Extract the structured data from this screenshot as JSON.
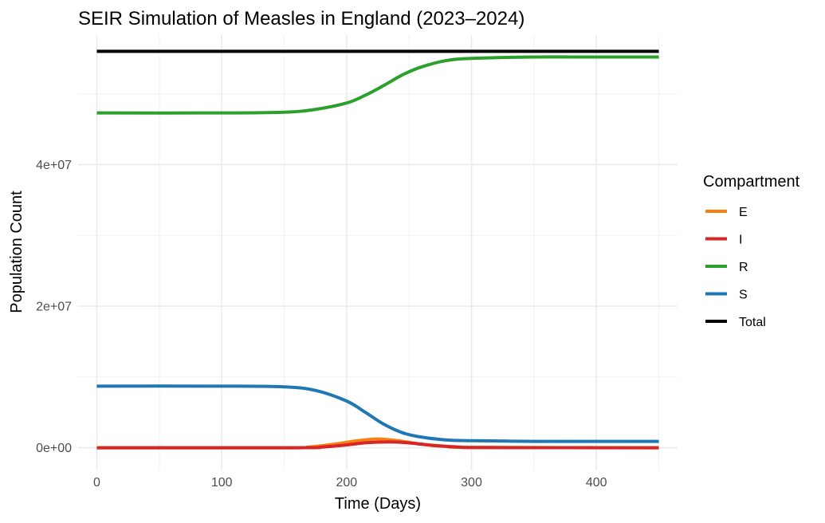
{
  "chart_data": {
    "type": "line",
    "title": "SEIR Simulation of Measles in England (2023–2024)",
    "xlabel": "Time (Days)",
    "ylabel": "Population Count",
    "xlim": [
      -15,
      465
    ],
    "ylim": [
      -3200000,
      58300000
    ],
    "x_ticks": [
      0,
      100,
      200,
      300,
      400
    ],
    "x_tick_labels": [
      "0",
      "100",
      "200",
      "300",
      "400"
    ],
    "y_ticks": [
      0,
      20000000,
      40000000
    ],
    "y_tick_labels": [
      "0e+00",
      "2e+07",
      "4e+07"
    ],
    "grid": true,
    "legend": {
      "title": "Compartment",
      "position": "right",
      "entries": [
        "E",
        "I",
        "R",
        "S",
        "Total"
      ]
    },
    "series": [
      {
        "name": "Total",
        "color": "#000000",
        "x": [
          0,
          450
        ],
        "y": [
          56000000,
          56000000
        ]
      },
      {
        "name": "R",
        "color": "#2ca02c",
        "x": [
          0,
          100,
          150,
          175,
          200,
          215,
          230,
          245,
          260,
          280,
          300,
          350,
          400,
          450
        ],
        "y": [
          47300000,
          47300000,
          47400000,
          47800000,
          48700000,
          49800000,
          51200000,
          52700000,
          53800000,
          54700000,
          55000000,
          55200000,
          55200000,
          55200000
        ]
      },
      {
        "name": "S",
        "color": "#1f77b4",
        "x": [
          0,
          100,
          150,
          175,
          200,
          215,
          230,
          245,
          260,
          280,
          300,
          350,
          400,
          450
        ],
        "y": [
          8700000,
          8700000,
          8600000,
          8100000,
          6600000,
          5000000,
          3300000,
          2100000,
          1500000,
          1100000,
          1000000,
          900000,
          900000,
          900000
        ]
      },
      {
        "name": "E",
        "color": "#ff7f0e",
        "x": [
          0,
          150,
          170,
          190,
          205,
          220,
          230,
          245,
          260,
          280,
          300,
          450
        ],
        "y": [
          0,
          0,
          100000,
          500000,
          900000,
          1200000,
          1200000,
          900000,
          500000,
          200000,
          50000,
          0
        ]
      },
      {
        "name": "I",
        "color": "#d62728",
        "x": [
          0,
          160,
          180,
          200,
          215,
          230,
          240,
          255,
          270,
          290,
          310,
          450
        ],
        "y": [
          0,
          0,
          100000,
          400000,
          700000,
          800000,
          800000,
          600000,
          300000,
          100000,
          20000,
          0
        ]
      }
    ]
  }
}
